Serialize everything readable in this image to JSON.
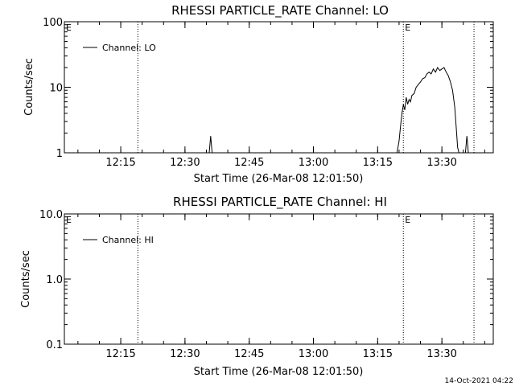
{
  "chart_data": [
    {
      "type": "line",
      "title": "RHESSI PARTICLE_RATE Channel: LO",
      "xlabel": "Start Time (26-Mar-08 12:01:50)",
      "ylabel": "Counts/sec",
      "y_scale": "log",
      "ylim": [
        1,
        100
      ],
      "y_ticks": [
        {
          "value": 1,
          "label": "1"
        },
        {
          "value": 10,
          "label": "10"
        },
        {
          "value": 100,
          "label": "100"
        }
      ],
      "xlim": [
        "12:01:50",
        "13:42:00"
      ],
      "x_ticks": [
        "12:15",
        "12:30",
        "12:45",
        "13:00",
        "13:15",
        "13:30"
      ],
      "grid": false,
      "legend_position": "top-left",
      "series": [
        {
          "name": "Channel: LO",
          "segments": [
            [
              [
                "12:35:40",
                1
              ],
              [
                "12:36:00",
                1.8
              ],
              [
                "12:36:20",
                1
              ]
            ],
            [
              [
                "13:19:30",
                1
              ],
              [
                "13:20:00",
                1.5
              ],
              [
                "13:20:20",
                2.5
              ],
              [
                "13:20:40",
                4
              ],
              [
                "13:21:00",
                5.5
              ],
              [
                "13:21:20",
                4.5
              ],
              [
                "13:21:40",
                7
              ],
              [
                "13:22:00",
                5.5
              ],
              [
                "13:22:20",
                6.5
              ],
              [
                "13:22:40",
                6
              ],
              [
                "13:23:00",
                7.5
              ],
              [
                "13:23:30",
                8
              ],
              [
                "13:24:00",
                10
              ],
              [
                "13:24:30",
                11
              ],
              [
                "13:25:00",
                12
              ],
              [
                "13:25:30",
                13.5
              ],
              [
                "13:26:00",
                14
              ],
              [
                "13:26:30",
                16
              ],
              [
                "13:27:00",
                17
              ],
              [
                "13:27:30",
                16
              ],
              [
                "13:28:00",
                19
              ],
              [
                "13:28:30",
                17
              ],
              [
                "13:29:00",
                20
              ],
              [
                "13:29:30",
                18
              ],
              [
                "13:30:00",
                19
              ],
              [
                "13:30:30",
                20
              ],
              [
                "13:31:00",
                17
              ],
              [
                "13:31:30",
                15
              ],
              [
                "13:32:00",
                12
              ],
              [
                "13:32:30",
                9
              ],
              [
                "13:33:00",
                5
              ],
              [
                "13:33:20",
                2.5
              ],
              [
                "13:33:40",
                1.2
              ],
              [
                "13:34:00",
                1
              ]
            ],
            [
              [
                "13:35:30",
                1
              ],
              [
                "13:35:50",
                1.8
              ],
              [
                "13:36:10",
                1
              ]
            ]
          ]
        }
      ],
      "markers": [
        {
          "time": "12:01:50",
          "label": "E"
        },
        {
          "time": "12:19:00",
          "label": ""
        },
        {
          "time": "13:21:00",
          "label": "E"
        },
        {
          "time": "13:37:30",
          "label": ""
        }
      ]
    },
    {
      "type": "line",
      "title": "RHESSI PARTICLE_RATE Channel: HI",
      "xlabel": "Start Time (26-Mar-08 12:01:50)",
      "ylabel": "Counts/sec",
      "y_scale": "log",
      "ylim": [
        0.1,
        10
      ],
      "y_ticks": [
        {
          "value": 0.1,
          "label": "0.1"
        },
        {
          "value": 1,
          "label": "1.0"
        },
        {
          "value": 10,
          "label": "10.0"
        }
      ],
      "xlim": [
        "12:01:50",
        "13:42:00"
      ],
      "x_ticks": [
        "12:15",
        "12:30",
        "12:45",
        "13:00",
        "13:15",
        "13:30"
      ],
      "grid": false,
      "legend_position": "top-left",
      "series": [
        {
          "name": "Channel: HI",
          "segments": []
        }
      ],
      "markers": [
        {
          "time": "12:01:50",
          "label": "E"
        },
        {
          "time": "12:19:00",
          "label": ""
        },
        {
          "time": "13:21:00",
          "label": "E"
        },
        {
          "time": "13:37:30",
          "label": ""
        }
      ]
    }
  ],
  "footer": {
    "timestamp": "14-Oct-2021 04:22"
  }
}
